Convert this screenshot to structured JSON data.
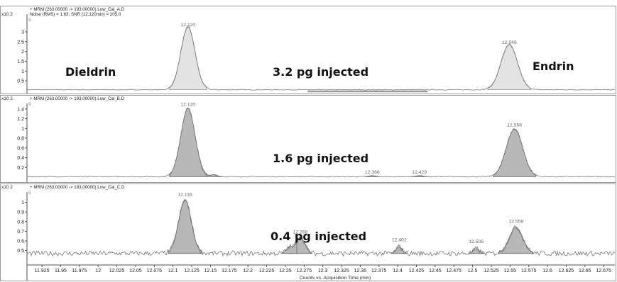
{
  "chart_data": {
    "type": "area",
    "x_axis": {
      "label": "Counts vs. Acquisition Time (min)",
      "range": [
        11.905,
        12.69
      ],
      "ticks": [
        "11.925",
        "11.95",
        "11.975",
        "12",
        "12.025",
        "12.05",
        "12.075",
        "12.1",
        "12.125",
        "12.15",
        "12.175",
        "12.2",
        "12.225",
        "12.25",
        "12.275",
        "12.3",
        "12.325",
        "12.35",
        "12.375",
        "12.4",
        "12.425",
        "12.45",
        "12.475",
        "12.5",
        "12.525",
        "12.55",
        "12.575",
        "12.6",
        "12.625",
        "12.65",
        "12.675"
      ]
    },
    "panels": [
      {
        "header": "+ MRM (263.00000 -> 193.00000) Low_Cal_A.D",
        "header2": "Noise (RMS) = 1.63; SNR (12.120min) = 205.0",
        "scale": "x10 2",
        "marker": "9",
        "ylim": [
          0,
          3.4
        ],
        "yticks": [
          "0.5",
          "1",
          "1.5",
          "2",
          "2.5",
          "3"
        ],
        "annotations": [
          "Dieldrin",
          "3.2 pg injected",
          "Endrin"
        ],
        "peak_labels": [
          {
            "x": 12.12,
            "label": "12.120",
            "y": 3.25
          },
          {
            "x": 12.549,
            "label": "12.549",
            "y": 2.35
          }
        ],
        "peaks": [
          {
            "x": 12.12,
            "height": 3.2,
            "width": 0.0095
          },
          {
            "x": 12.549,
            "height": 2.3,
            "width": 0.011
          }
        ],
        "baseline": 0.05,
        "fill": "#e3e3e3",
        "stroke": "#9a9a9a",
        "lowband": [
          12.28,
          12.44
        ]
      },
      {
        "header": "+ MRM (263.00000 -> 193.00000) Low_Cal_B.D",
        "scale": "x10 2",
        "marker": "9",
        "ylim": [
          0,
          1.5
        ],
        "yticks": [
          "0.2",
          "0.4",
          "0.6",
          "0.8",
          "1",
          "1.2",
          "1.4"
        ],
        "annotations": [
          "1.6 pg injected"
        ],
        "peak_labels": [
          {
            "x": 12.12,
            "label": "12.120",
            "y": 1.45
          },
          {
            "x": 12.556,
            "label": "12.556",
            "y": 1.03
          },
          {
            "x": 12.366,
            "label": "12.366",
            "y": 0.06
          },
          {
            "x": 12.429,
            "label": "12.429",
            "y": 0.06
          }
        ],
        "peaks": [
          {
            "x": 12.12,
            "height": 1.4,
            "width": 0.0095
          },
          {
            "x": 12.556,
            "height": 0.98,
            "width": 0.011
          },
          {
            "x": 12.155,
            "height": 0.04,
            "width": 0.004
          },
          {
            "x": 12.366,
            "height": 0.02,
            "width": 0.004
          },
          {
            "x": 12.429,
            "height": 0.02,
            "width": 0.004
          }
        ],
        "baseline": 0.01,
        "fill": "#b8b8b8",
        "stroke": "#6a6a6a"
      },
      {
        "header": "+ MRM (263.00000 -> 193.00000) Low_Cal_C.D",
        "scale": "x10 2",
        "marker": "9",
        "ylim": [
          0.35,
          1.1
        ],
        "yticks": [
          "0.5",
          "0.6",
          "0.7",
          "0.8",
          "0.9",
          "1"
        ],
        "annotations": [
          "0.4 pg injected"
        ],
        "peak_labels": [
          {
            "x": 12.116,
            "label": "12.116",
            "y": 1.06
          },
          {
            "x": 12.27,
            "label": "12.268",
            "y": 0.67
          },
          {
            "x": 12.402,
            "label": "12.402",
            "y": 0.59
          },
          {
            "x": 12.505,
            "label": "12.505",
            "y": 0.57
          },
          {
            "x": 12.558,
            "label": "12.558",
            "y": 0.78
          }
        ],
        "peaks": [
          {
            "x": 12.116,
            "height": 0.55,
            "width": 0.0085
          },
          {
            "x": 12.27,
            "height": 0.17,
            "width": 0.006
          },
          {
            "x": 12.255,
            "height": 0.06,
            "width": 0.004
          },
          {
            "x": 12.402,
            "height": 0.07,
            "width": 0.004
          },
          {
            "x": 12.505,
            "height": 0.05,
            "width": 0.004
          },
          {
            "x": 12.558,
            "height": 0.27,
            "width": 0.009
          }
        ],
        "baseline": 0.47,
        "noisy": true,
        "fill": "#b8b8b8",
        "stroke": "#6a6a6a"
      }
    ]
  }
}
